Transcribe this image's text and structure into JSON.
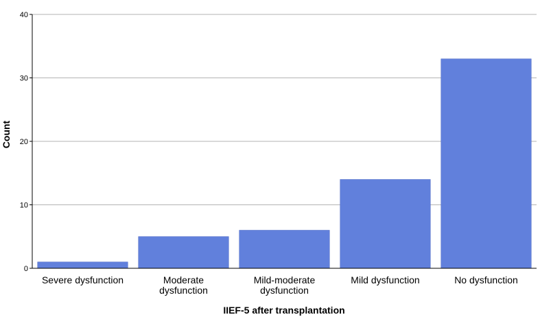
{
  "chart_data": {
    "type": "bar",
    "categories": [
      [
        "Severe dysfunction"
      ],
      [
        "Moderate",
        "dysfunction"
      ],
      [
        "Mild-moderate",
        "dysfunction"
      ],
      [
        "Mild dysfunction"
      ],
      [
        "No dysfunction"
      ]
    ],
    "values": [
      1,
      5,
      6,
      14,
      33
    ],
    "xlabel": "IIEF-5 after transplantation",
    "ylabel": "Count",
    "ylim": [
      0,
      40
    ],
    "yticks": [
      "0",
      "10",
      "20",
      "30",
      "40"
    ],
    "grid": true,
    "bar_color": "#6180dc"
  }
}
